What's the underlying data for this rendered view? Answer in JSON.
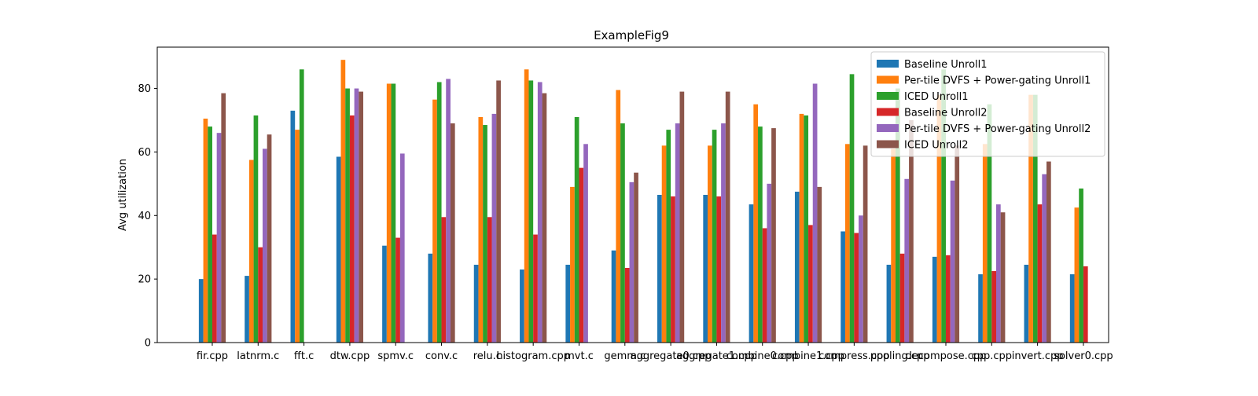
{
  "chart_data": {
    "type": "bar",
    "title": "ExampleFig9",
    "xlabel": "",
    "ylabel": "Avg utilization",
    "ylim": [
      0,
      93
    ],
    "yticks": [
      0,
      20,
      40,
      60,
      80
    ],
    "grid": false,
    "legend_position": "top-right",
    "categories": [
      "fir.cpp",
      "latnrm.c",
      "fft.c",
      "dtw.cpp",
      "spmv.c",
      "conv.c",
      "relu.c",
      "histogram.cpp",
      "mvt.c",
      "gemm.c",
      "aggregate0.cpp",
      "aggregate1.cpp",
      "combine0.cpp",
      "combine1.cpp",
      "compress.cpp",
      "pooling.cpp",
      "decompose.cpp",
      "cpp.cpp",
      "invert.cpp",
      "solver0.cpp"
    ],
    "series": [
      {
        "name": "Baseline Unroll1",
        "color": "#1f77b4",
        "values": [
          20,
          21,
          73,
          58.5,
          30.5,
          28,
          24.5,
          23,
          24.5,
          29,
          46.5,
          46.5,
          43.5,
          47.5,
          35,
          24.5,
          27,
          21.5,
          24.5,
          21.5
        ]
      },
      {
        "name": "Per-tile DVFS + Power-gating Unroll1",
        "color": "#ff7f0e",
        "values": [
          70.5,
          57.5,
          67,
          89,
          81.5,
          76.5,
          71,
          86,
          49,
          79.5,
          62,
          62,
          75,
          72,
          62.5,
          61,
          78,
          62.5,
          78,
          42.5
        ]
      },
      {
        "name": "ICED Unroll1",
        "color": "#2ca02c",
        "values": [
          68,
          71.5,
          86,
          80,
          81.5,
          82,
          68.5,
          82.5,
          71,
          69,
          67,
          67,
          68,
          71.5,
          84.5,
          80,
          86,
          75,
          78,
          48.5
        ]
      },
      {
        "name": "Baseline Unroll2",
        "color": "#d62728",
        "values": [
          34,
          30,
          null,
          71.5,
          33,
          39.5,
          39.5,
          34,
          55,
          23.5,
          46,
          46,
          36,
          37,
          34.5,
          28,
          27.5,
          22.5,
          43.5,
          24
        ]
      },
      {
        "name": "Per-tile DVFS + Power-gating Unroll2",
        "color": "#9467bd",
        "values": [
          66,
          61,
          null,
          80,
          59.5,
          83,
          72,
          82,
          62.5,
          50.5,
          69,
          69,
          50,
          81.5,
          40,
          51.5,
          51,
          43.5,
          53,
          null
        ]
      },
      {
        "name": "ICED Unroll2",
        "color": "#8c564b",
        "values": [
          78.5,
          65.5,
          null,
          79,
          null,
          69,
          82.5,
          78.5,
          null,
          53.5,
          79,
          79,
          67.5,
          49,
          62,
          70,
          62,
          41,
          57,
          null
        ]
      }
    ]
  }
}
